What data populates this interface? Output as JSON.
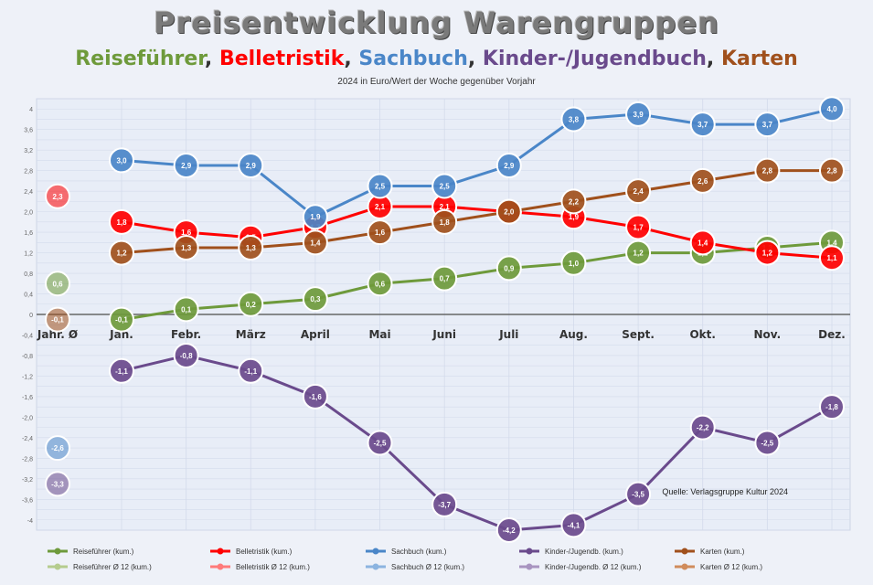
{
  "title": "Preisentwicklung Warengruppen",
  "subtitle": [
    {
      "text": "Reiseführer",
      "color": "#6e9a3b"
    },
    {
      "text": "Belletristik",
      "color": "#ff0000"
    },
    {
      "text": "Sachbuch",
      "color": "#4a86c8"
    },
    {
      "text": "Kinder-/Jugendbuch",
      "color": "#6a4a8c"
    },
    {
      "text": "Karten",
      "color": "#a0501c"
    }
  ],
  "subtitle_separator": ",",
  "note": "2024 in Euro/Wert der Woche gegenüber Vorjahr",
  "source": "Quelle: Verlagsgruppe Kultur 2024",
  "chart_data": {
    "type": "line",
    "categories": [
      "Jan.",
      "Febr.",
      "März",
      "April",
      "Mai",
      "Juni",
      "Juli",
      "Aug.",
      "Sept.",
      "Okt.",
      "Nov.",
      "Dez."
    ],
    "yaxis_labels": [
      "4",
      "3,6",
      "3,2",
      "2,8",
      "2,4",
      "2,0",
      "1,6",
      "1,2",
      "0,8",
      "0,4",
      "0",
      "-0,4",
      "-0,8",
      "-1,2",
      "-1,6",
      "-2,0",
      "-2,4",
      "-2,8",
      "-3,2",
      "-3,6",
      "-4"
    ],
    "ylim": [
      -4.2,
      4.2
    ],
    "grid": true,
    "legend_position": "bottom",
    "reference_label": "Jahr. Ø",
    "series": [
      {
        "name": "Reiseführer (kum.)",
        "color": "#6e9a3b",
        "values": [
          -0.1,
          0.1,
          0.2,
          0.3,
          0.6,
          0.7,
          0.9,
          1.0,
          1.2,
          1.2,
          1.3,
          1.4
        ],
        "labels": [
          "-0,1",
          "0,1",
          "0,2",
          "0,3",
          "0,6",
          "0,7",
          "0,9",
          "1,0",
          "1,2",
          "1,2",
          "1,3",
          "1,4"
        ],
        "ref_value": 0.6,
        "ref_label": "0,6"
      },
      {
        "name": "Belletristik (kum.)",
        "color": "#ff0000",
        "values": [
          1.8,
          1.6,
          1.5,
          1.7,
          2.1,
          2.1,
          2.0,
          1.9,
          1.7,
          1.4,
          1.2,
          1.1
        ],
        "labels": [
          "1,8",
          "1,6",
          "1,5",
          "1,7",
          "2,1",
          "2,1",
          "2,0",
          "1,9",
          "1,7",
          "1,4",
          "1,2",
          "1,1"
        ],
        "ref_value": 2.3,
        "ref_label": "2,3"
      },
      {
        "name": "Sachbuch (kum.)",
        "color": "#4a86c8",
        "values": [
          3.0,
          2.9,
          2.9,
          1.9,
          2.5,
          2.5,
          2.9,
          3.8,
          3.9,
          3.7,
          3.7,
          4.0
        ],
        "labels": [
          "3,0",
          "2,9",
          "2,9",
          "1,9",
          "2,5",
          "2,5",
          "2,9",
          "3,8",
          "3,9",
          "3,7",
          "3,7",
          "4,0"
        ],
        "ref_value": -2.6,
        "ref_label": "-2,6"
      },
      {
        "name": "Kinder-/Jugendb. (kum.)",
        "color": "#6a4a8c",
        "values": [
          -1.1,
          -0.8,
          -1.1,
          -1.6,
          -2.5,
          -3.7,
          -4.2,
          -4.1,
          -3.5,
          -2.2,
          -2.5,
          -1.8
        ],
        "labels": [
          "-1,1",
          "-0,8",
          "-1,1",
          "-1,6",
          "-2,5",
          "-3,7",
          "-4,2",
          "-4,1",
          "-3,5",
          "-2,2",
          "-2,5",
          "-1,8"
        ],
        "ref_value": -3.3,
        "ref_label": "-3,3"
      },
      {
        "name": "Karten (kum.)",
        "color": "#a0501c",
        "values": [
          1.2,
          1.3,
          1.3,
          1.4,
          1.6,
          1.8,
          2.0,
          2.2,
          2.4,
          2.6,
          2.8,
          2.8
        ],
        "labels": [
          "1,2",
          "1,3",
          "1,3",
          "1,4",
          "1,6",
          "1,8",
          "2,0",
          "2,2",
          "2,4",
          "2,6",
          "2,8",
          "2,8"
        ],
        "ref_value": -0.1,
        "ref_label": "-0,1"
      }
    ],
    "legend": [
      {
        "name": "Reiseführer (kum.)",
        "color": "#6e9a3b"
      },
      {
        "name": "Belletristik (kum.)",
        "color": "#ff0000"
      },
      {
        "name": "Sachbuch (kum.)",
        "color": "#4a86c8"
      },
      {
        "name": "Kinder-/Jugendb. (kum.)",
        "color": "#6a4a8c"
      },
      {
        "name": "Karten (kum.)",
        "color": "#a0501c"
      },
      {
        "name": "Reiseführer Ø 12 (kum.)",
        "color": "#b5cc8e"
      },
      {
        "name": "Belletristik Ø 12 (kum.)",
        "color": "#ff7a7a"
      },
      {
        "name": "Sachbuch Ø 12 (kum.)",
        "color": "#8cb4e0"
      },
      {
        "name": "Kinder-/Jugendb. Ø 12 (kum.)",
        "color": "#a894c0"
      },
      {
        "name": "Karten Ø 12 (kum.)",
        "color": "#d08c5c"
      }
    ]
  }
}
